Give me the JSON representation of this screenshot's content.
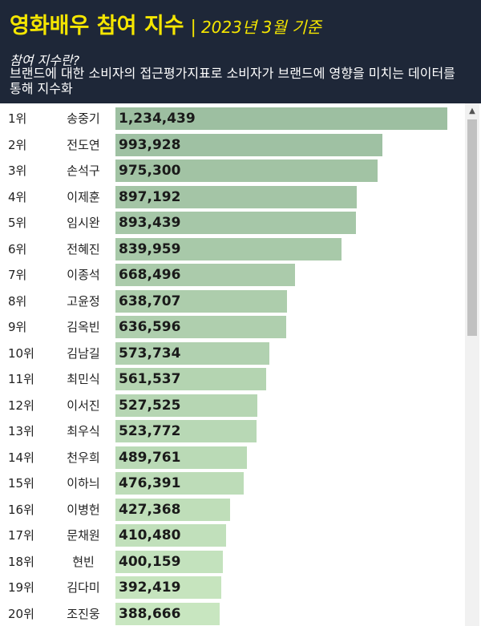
{
  "header": {
    "title": "영화배우 참여 지수",
    "separator": "|",
    "date": "2023년 3월 기준",
    "question": "참여 지수란?",
    "description": "브랜드에 대한 소비자의 접근평가지표로 소비자가 브랜드에 영향을 미치는 데이터를 통해 지수화"
  },
  "chart_data": {
    "type": "bar",
    "orientation": "horizontal",
    "title": "영화배우 참여 지수",
    "ranks": [
      "1위",
      "2위",
      "3위",
      "4위",
      "5위",
      "6위",
      "7위",
      "8위",
      "9위",
      "10위",
      "11위",
      "12위",
      "13위",
      "14위",
      "15위",
      "16위",
      "17위",
      "18위",
      "19위",
      "20위"
    ],
    "categories": [
      "송중기",
      "전도연",
      "손석구",
      "이제훈",
      "임시완",
      "전혜진",
      "이종석",
      "고윤정",
      "김옥빈",
      "김남길",
      "최민식",
      "이서진",
      "최우식",
      "천우희",
      "이하늬",
      "이병헌",
      "문채원",
      "현빈",
      "김다미",
      "조진웅"
    ],
    "values": [
      1234439,
      993928,
      975300,
      897192,
      893439,
      839959,
      668496,
      638707,
      636596,
      573734,
      561537,
      527525,
      523772,
      489761,
      476391,
      427368,
      410480,
      400159,
      392419,
      388666
    ],
    "value_labels": [
      "1,234,439",
      "993,928",
      "975,300",
      "897,192",
      "893,439",
      "839,959",
      "668,496",
      "638,707",
      "636,596",
      "573,734",
      "561,537",
      "527,525",
      "523,772",
      "489,761",
      "476,391",
      "427,368",
      "410,480",
      "400,159",
      "392,419",
      "388,666"
    ],
    "colors": {
      "top": "#9dbfa1",
      "bottom": "#c8e6c0"
    }
  },
  "scrollbar": {
    "up_icon": "▲"
  }
}
